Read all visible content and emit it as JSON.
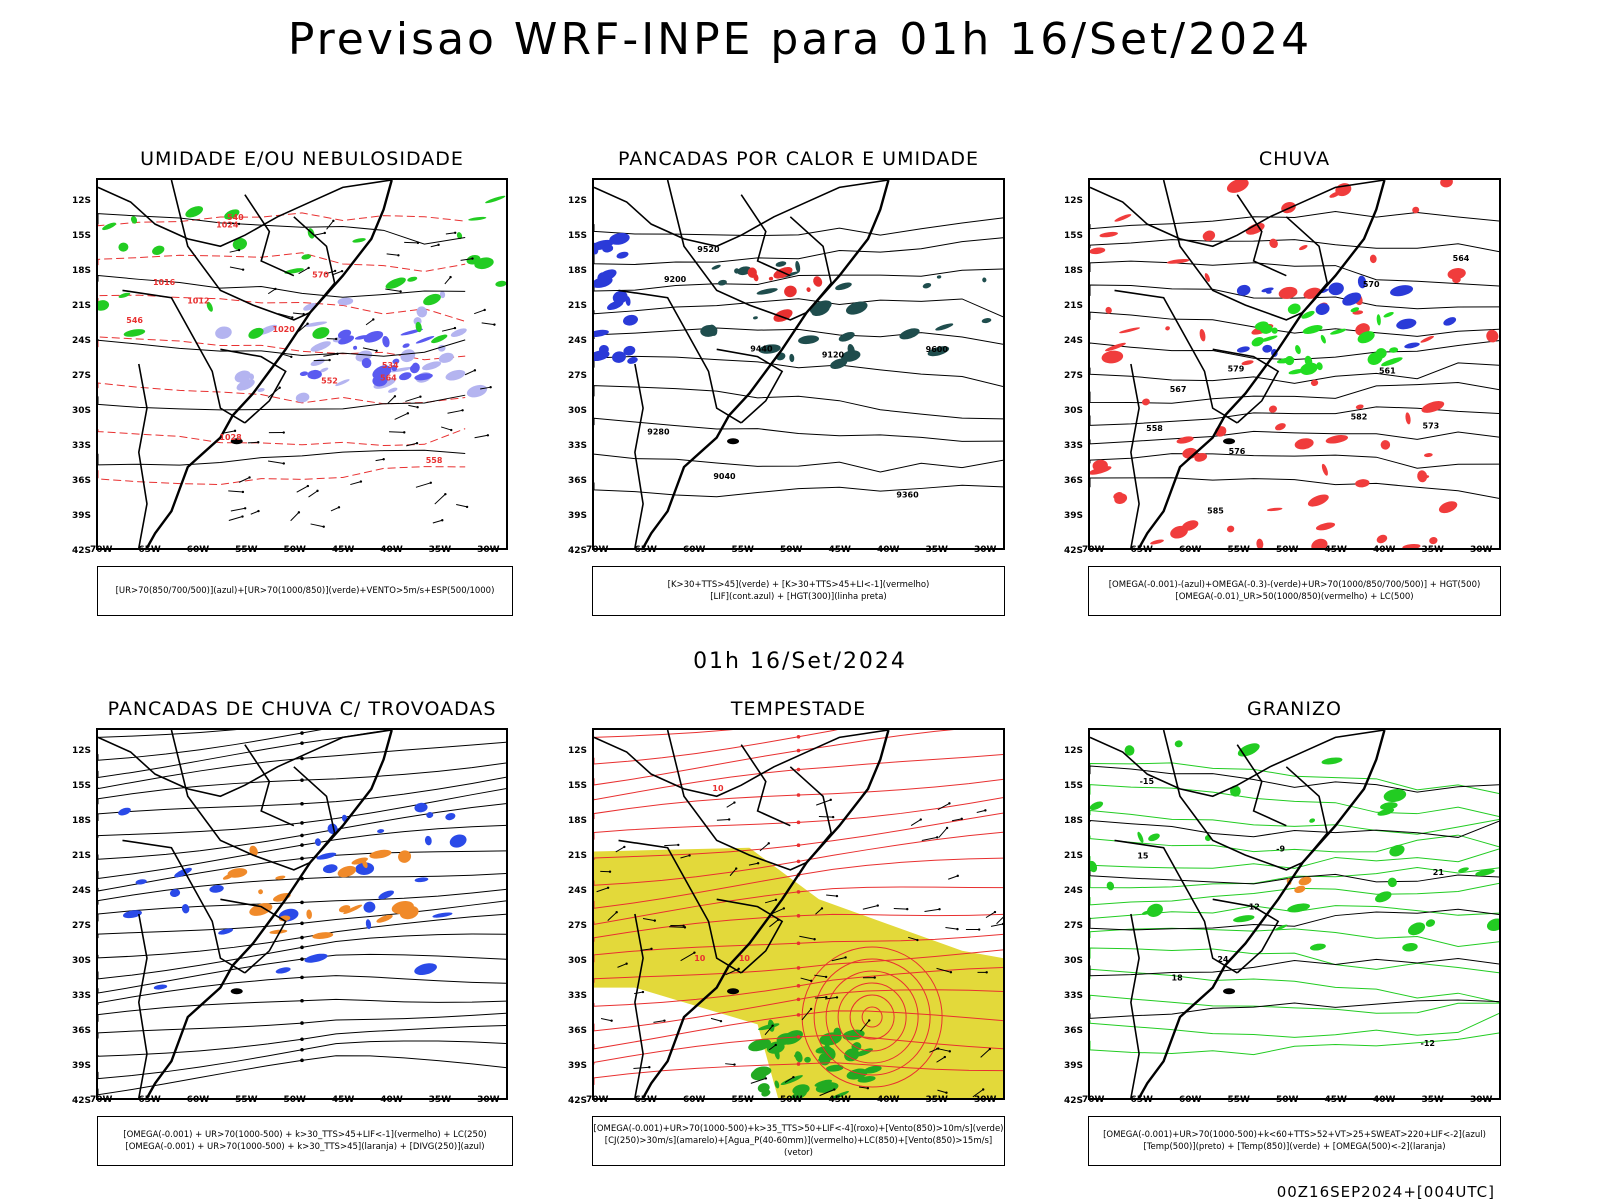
{
  "header": {
    "title": "Previsao WRF-INPE  para 01h 16/Set/2024",
    "mid_date": "01h 16/Set/2024",
    "footer_stamp": "00Z16SEP2024+[004UTC]"
  },
  "axes": {
    "lat_labels": [
      "12S",
      "15S",
      "18S",
      "21S",
      "24S",
      "27S",
      "30S",
      "33S",
      "36S",
      "39S",
      "42S"
    ],
    "lon_labels": [
      "70W",
      "65W",
      "60W",
      "55W",
      "50W",
      "45W",
      "40W",
      "35W",
      "30W"
    ]
  },
  "panels": [
    {
      "id": "umidade",
      "title": "UMIDADE E/OU NEBULOSIDADE",
      "legend": [
        "[UR>70(850/700/500)](azul)+[UR>70(1000/850)](verde)+VENTO>5m/s+ESP(500/1000)"
      ],
      "contour_labels": [
        "1012",
        "1016",
        "1020",
        "1024",
        "1028",
        "570",
        "546",
        "552",
        "558",
        "564",
        "540",
        "534"
      ],
      "colors": {
        "fill1": "#b4b4f0",
        "fill2": "#5a5af0",
        "contour_green": "#22cc22",
        "contour_red": "#e83030"
      }
    },
    {
      "id": "pancadas_calor",
      "title": "PANCADAS POR CALOR E UMIDADE",
      "legend": [
        "[K>30+TTS>45](verde) + [K>30+TTS>45+LI<-1](vermelho)",
        "[LIF](cont.azul) + [HGT(300)](linha preta)"
      ],
      "contour_labels": [
        "9520",
        "9600",
        "9440",
        "9360",
        "9280",
        "9200",
        "9120",
        "9040"
      ],
      "colors": {
        "fill_dark": "#1f4d4d",
        "fill_red": "#e83030",
        "contour_blue": "#2a3ad8"
      }
    },
    {
      "id": "chuva",
      "title": "CHUVA",
      "legend": [
        "[OMEGA(-0.001)-(azul)+OMEGA(-0.3)-(verde)+UR>70(1000/850/700/500)] + HGT(500)",
        "[OMEGA(-0.01)_UR>50(1000/850)(vermelho) + LC(500)"
      ],
      "contour_labels": [
        "585",
        "582",
        "579",
        "576",
        "573",
        "570",
        "567",
        "564",
        "561",
        "558"
      ],
      "colors": {
        "fill_red": "#f03c3c",
        "fill_green": "#22dd22",
        "fill_blue": "#2a3ad8"
      }
    },
    {
      "id": "pancadas_trovoadas",
      "title": "PANCADAS DE CHUVA C/ TROVOADAS",
      "legend": [
        "[OMEGA(-0.001) + UR>70(1000-500) + k>30_TTS>45+LIF<-1](vermelho) + LC(250)",
        "[OMEGA(-0.001) + UR>70(1000-500) + k>30_TTS>45](laranja) + [DIVG(250)](azul)"
      ],
      "contour_labels": [],
      "colors": {
        "fill_orange": "#f08a2a",
        "contour_blue": "#2a4ae8"
      }
    },
    {
      "id": "tempestade",
      "title": "TEMPESTADE",
      "legend": [
        "[OMEGA(-0.001)+UR>70(1000-500)+k>35_TTS>50+LIF<-4](roxo)+[Vento(850)>10m/s](verde)",
        "[CJ(250)>30m/s](amarelo)+[Agua_P(40-60mm)](vermelho)+LC(850)+[Vento(850)>15m/s](vetor)"
      ],
      "contour_labels": [
        "10",
        "10",
        "10"
      ],
      "colors": {
        "fill_yellow": "#e3d93a",
        "fill_green": "#22aa22",
        "stream_red": "#e83030"
      }
    },
    {
      "id": "granizo",
      "title": "GRANIZO",
      "legend": [
        "[OMEGA(-0.001)+UR>70(1000-500)+k<60+TTS>52+VT>25+SWEAT>220+LIF<-2](azul)",
        "[Temp(500)](preto) + [Temp(850)](verde) + [OMEGA(500)<-2](laranja)"
      ],
      "contour_labels": [
        "12",
        "15",
        "18",
        "21",
        "24",
        "-9",
        "-12",
        "-15"
      ],
      "colors": {
        "contour_green": "#22cc22",
        "fill_orange": "#f08a2a"
      }
    }
  ]
}
